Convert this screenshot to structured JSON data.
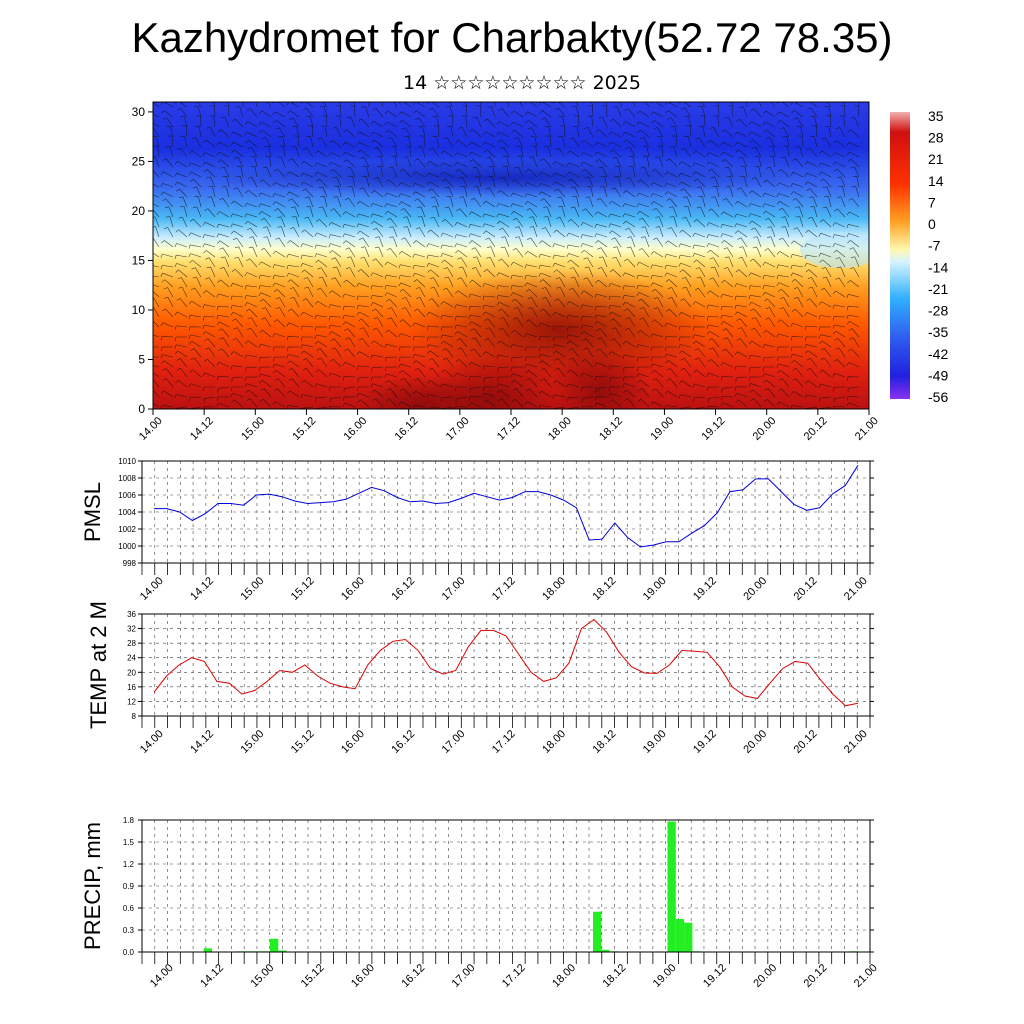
{
  "title": "Kazhydromet for Charbakty(52.72 78.35)",
  "subtitle": "14 ☆☆☆☆☆☆☆☆☆ 2025",
  "time_labels": [
    "14.00",
    "14.12",
    "15.00",
    "15.12",
    "16.00",
    "16.12",
    "17.00",
    "17.12",
    "18.00",
    "18.12",
    "19.00",
    "19.12",
    "20.00",
    "20.12",
    "21.00"
  ],
  "chart_data": [
    {
      "type": "heatmap",
      "description_of_field": "temperature vertical cross-section with wind barbs",
      "y_ticks": [
        0,
        5,
        10,
        15,
        20,
        25,
        30
      ],
      "ylim": [
        0,
        31
      ],
      "colorbar_labels": [
        "35",
        "28",
        "21",
        "14",
        "7",
        "0",
        "-7",
        "-14",
        "-21",
        "-28",
        "-35",
        "-42",
        "-49",
        "-56"
      ],
      "colors": {
        "hot": "#cc1111",
        "warm": "#ff7a00",
        "yellow": "#ffe680",
        "cold": "#1a2be0",
        "cyan": "#3cb8ff"
      }
    },
    {
      "type": "line",
      "ylabel": "PMSL",
      "ylim": [
        998,
        1010
      ],
      "y_ticks": [
        998,
        1000,
        1002,
        1004,
        1006,
        1008,
        1010
      ],
      "color": "#0000dd",
      "values": [
        1004.4,
        1004.4,
        1004.0,
        1003.0,
        1003.8,
        1005.0,
        1005.0,
        1004.8,
        1006.0,
        1006.1,
        1005.8,
        1005.3,
        1005.0,
        1005.1,
        1005.2,
        1005.5,
        1006.2,
        1006.9,
        1006.5,
        1005.7,
        1005.2,
        1005.3,
        1005.0,
        1005.1,
        1005.6,
        1006.2,
        1005.8,
        1005.4,
        1005.7,
        1006.4,
        1006.4,
        1006.0,
        1005.4,
        1004.5,
        1000.7,
        1000.8,
        1002.7,
        1001.0,
        999.9,
        1000.1,
        1000.5,
        1000.5,
        1001.5,
        1002.4,
        1003.9,
        1006.4,
        1006.6,
        1007.9,
        1007.9,
        1006.4,
        1004.9,
        1004.2,
        1004.5,
        1006.1,
        1007.1,
        1009.5
      ]
    },
    {
      "type": "line",
      "ylabel": "TEMP at 2 M",
      "ylim": [
        8,
        36
      ],
      "y_ticks": [
        8,
        12,
        16,
        20,
        24,
        28,
        32,
        36
      ],
      "color": "#dd0000",
      "values": [
        14.5,
        19.0,
        22.0,
        24.0,
        23.0,
        17.5,
        17.0,
        14.0,
        15.0,
        17.5,
        20.5,
        20.0,
        22.0,
        19.0,
        17.0,
        16.0,
        15.5,
        22.0,
        26.0,
        28.5,
        29.0,
        26.0,
        21.0,
        19.5,
        20.5,
        27.0,
        31.5,
        31.5,
        30.0,
        25.0,
        20.0,
        17.5,
        18.5,
        22.5,
        32.0,
        34.5,
        31.0,
        25.5,
        21.5,
        19.8,
        19.7,
        22.0,
        26.0,
        25.8,
        25.5,
        21.5,
        16.0,
        13.5,
        12.8,
        17.0,
        21.0,
        23.0,
        22.5,
        18.0,
        14.0,
        10.8,
        11.5
      ]
    },
    {
      "type": "bar",
      "ylabel": "PRECIP, mm",
      "ylim": [
        0,
        1.8
      ],
      "y_ticks": [
        "0.0",
        "0.3",
        "0.6",
        "0.9",
        "1.2",
        "1.5",
        "1.8"
      ],
      "color": "#22ee22",
      "values": [
        0,
        0,
        0,
        0,
        0,
        0,
        0.05,
        0,
        0,
        0,
        0.01,
        0.01,
        0.01,
        0.01,
        0.18,
        0.02,
        0,
        0,
        0,
        0,
        0,
        0,
        0,
        0,
        0,
        0,
        0,
        0,
        0,
        0,
        0,
        0,
        0,
        0,
        0,
        0,
        0,
        0,
        0,
        0,
        0,
        0,
        0,
        0,
        0,
        0,
        0,
        0,
        0,
        0,
        0,
        0,
        0,
        0.55,
        0.03,
        0.01,
        0,
        0,
        0,
        0,
        0,
        0,
        1.78,
        0.45,
        0.4,
        0.01,
        0,
        0,
        0,
        0,
        0,
        0,
        0,
        0,
        0,
        0,
        0,
        0,
        0,
        0,
        0,
        0,
        0,
        0,
        0.01
      ]
    }
  ]
}
